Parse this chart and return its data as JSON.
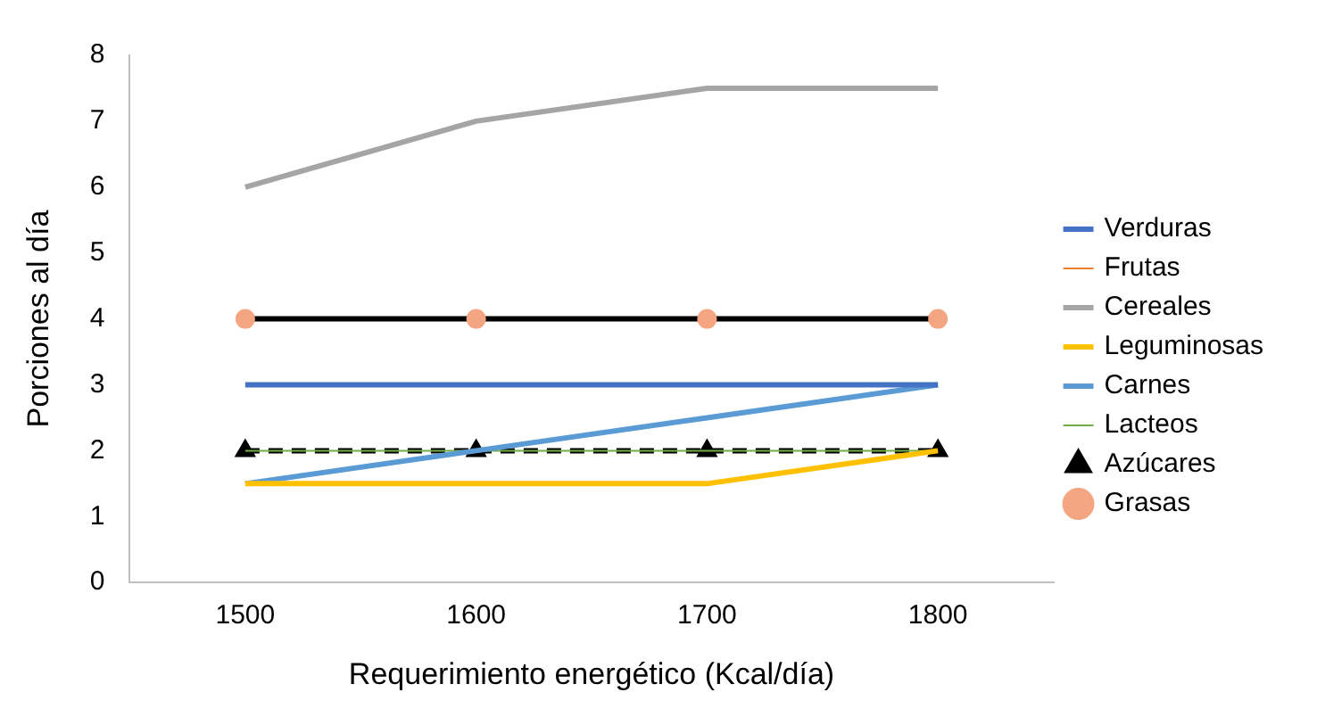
{
  "chart_data": {
    "type": "line",
    "xlabel": "Requerimiento energético (Kcal/día)",
    "ylabel": "Porciones al día",
    "categories": [
      "1500",
      "1600",
      "1700",
      "1800"
    ],
    "ylim": [
      0,
      8
    ],
    "yticks": [
      0,
      1,
      2,
      3,
      4,
      5,
      6,
      7,
      8
    ],
    "grid": false,
    "legend": "right",
    "marker": "none",
    "line_style": "solid",
    "series": [
      {
        "name": "Verduras",
        "color": "#4472c4",
        "values": [
          3,
          3,
          3,
          3
        ]
      },
      {
        "name": "Frutas",
        "color": "#ed7d31",
        "values": [
          null,
          null,
          null,
          null
        ]
      },
      {
        "name": "Cereales",
        "color": "#a5a5a5",
        "values": [
          6,
          7,
          7.5,
          7.5
        ]
      },
      {
        "name": "Leguminosas",
        "color": "#ffc000",
        "values": [
          1.5,
          1.5,
          1.5,
          2
        ]
      },
      {
        "name": "Carnes",
        "color": "#5b9bd5",
        "values": [
          1.5,
          2,
          2.5,
          3
        ]
      },
      {
        "name": "Lacteos",
        "color": "#70ad47",
        "values": [
          2,
          2,
          2,
          2
        ]
      },
      {
        "name": "Azúcares",
        "color": "#000000",
        "values": [
          2,
          2,
          2,
          2
        ],
        "marker": "triangle",
        "line_style": "dashed"
      },
      {
        "name": "Grasas",
        "color": "#000000",
        "values": [
          4,
          4,
          4,
          4
        ],
        "marker": "circle",
        "colors": [
          "#f4a582",
          "#f4a582",
          "#f4a582",
          "#f4a582"
        ]
      }
    ]
  }
}
